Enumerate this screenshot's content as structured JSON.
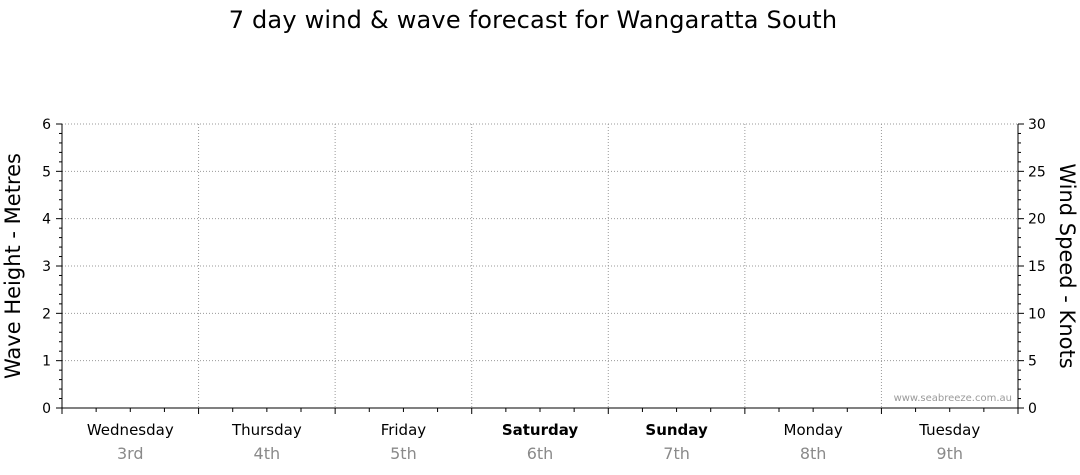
{
  "title": "7 day wind & wave forecast for Wangaratta South",
  "watermark": "www.seabreeze.com.au",
  "chart_data": {
    "type": "line",
    "title": "7 day wind & wave forecast for Wangaratta South",
    "ylabel_left": "Wave Height - Metres",
    "ylabel_right": "Wind Speed - Knots",
    "ylim_left": [
      0,
      6
    ],
    "ylim_right": [
      0,
      30
    ],
    "yticks_left": [
      "0",
      "1",
      "2",
      "3",
      "4",
      "5",
      "6"
    ],
    "yticks_right": [
      "0",
      "5",
      "10",
      "15",
      "20",
      "25",
      "30"
    ],
    "grid": true,
    "days": [
      {
        "name": "Wednesday",
        "date": "3rd",
        "weekend": false
      },
      {
        "name": "Thursday",
        "date": "4th",
        "weekend": false
      },
      {
        "name": "Friday",
        "date": "5th",
        "weekend": false
      },
      {
        "name": "Saturday",
        "date": "6th",
        "weekend": true
      },
      {
        "name": "Sunday",
        "date": "7th",
        "weekend": true
      },
      {
        "name": "Monday",
        "date": "8th",
        "weekend": false
      },
      {
        "name": "Tuesday",
        "date": "9th",
        "weekend": false
      }
    ],
    "series": []
  }
}
